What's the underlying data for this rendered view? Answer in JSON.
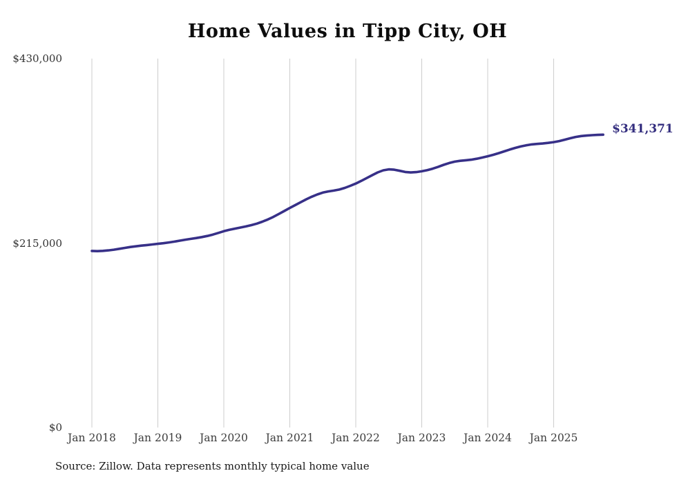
{
  "title": "Home Values in Tipp City, OH",
  "source_note": "Source: Zillow. Data represents monthly typical home value",
  "end_label": "$341,371",
  "colors": {
    "line": "#373088",
    "end_label": "#332d7e",
    "grid": "#cccccc",
    "title": "#0d0d0d",
    "x_axis_label": "#3d3d3d",
    "y_axis_label": "#333333",
    "source": "#1a1a1a"
  },
  "chart_data": {
    "type": "line",
    "title": "Home Values in Tipp City, OH",
    "xlabel": "",
    "ylabel": "",
    "ylim": [
      0,
      430000
    ],
    "y_ticks": [
      0,
      215000,
      430000
    ],
    "y_tick_labels": [
      "$0",
      "$215,000",
      "$430,000"
    ],
    "x_tick_labels": [
      "Jan 2018",
      "Jan 2019",
      "Jan 2020",
      "Jan 2021",
      "Jan 2022",
      "Jan 2023",
      "Jan 2024",
      "Jan 2025"
    ],
    "grid": "vertical-only",
    "legend_position": "none",
    "x_start_month": "2018-01",
    "x_end_month": "2025-10",
    "points_per_year": 12,
    "end_value": 341371,
    "end_value_label": "$341,371",
    "series": [
      {
        "name": "Typical home value",
        "values": [
          205800,
          205600,
          205900,
          206500,
          207300,
          208300,
          209400,
          210400,
          211200,
          212000,
          212700,
          213400,
          214100,
          214800,
          215700,
          216700,
          217800,
          218900,
          219900,
          220900,
          222000,
          223300,
          224900,
          226800,
          228800,
          230400,
          231800,
          233100,
          234400,
          235900,
          237700,
          239900,
          242500,
          245500,
          248900,
          252400,
          255900,
          259300,
          262700,
          266000,
          269000,
          271700,
          273800,
          275200,
          276200,
          277400,
          279300,
          281700,
          284400,
          287500,
          290800,
          294200,
          297400,
          299800,
          300900,
          300500,
          299200,
          297900,
          297300,
          297700,
          298700,
          300000,
          301700,
          303900,
          306200,
          308300,
          309900,
          310900,
          311500,
          312200,
          313300,
          314700,
          316200,
          317900,
          319800,
          321900,
          324000,
          325900,
          327600,
          329000,
          330000,
          330600,
          331100,
          331800,
          332700,
          333900,
          335500,
          337200,
          338700,
          339700,
          340300,
          340800,
          341100,
          341371
        ]
      }
    ]
  }
}
